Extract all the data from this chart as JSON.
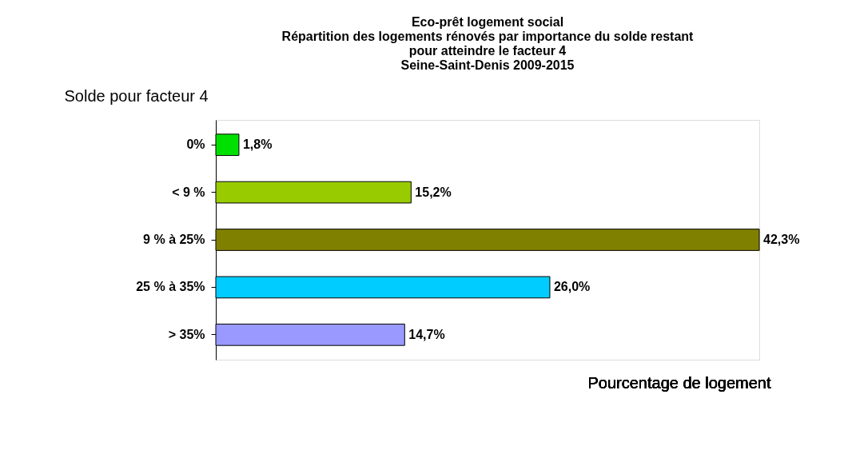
{
  "chart_data": {
    "type": "bar",
    "orientation": "horizontal",
    "title": [
      "Eco-prêt logement social",
      "Répartition des logements rénovés par importance du solde restant",
      "pour atteindre le facteur 4",
      "Seine-Saint-Denis 2009-2015"
    ],
    "ylabel": "Solde pour facteur 4",
    "xlabel": "Pourcentage de logement",
    "categories": [
      "0%",
      "< 9 %",
      "9 % à 25%",
      "25 % à 35%",
      "> 35%"
    ],
    "values": [
      1.8,
      15.2,
      42.3,
      26.0,
      14.7
    ],
    "colors": [
      "#00e000",
      "#99cc00",
      "#808000",
      "#00ccff",
      "#9999ff"
    ],
    "value_labels": [
      "1,8%",
      "15,2%",
      "42,3%",
      "26,0%",
      "14,7%"
    ],
    "grid": false
  }
}
